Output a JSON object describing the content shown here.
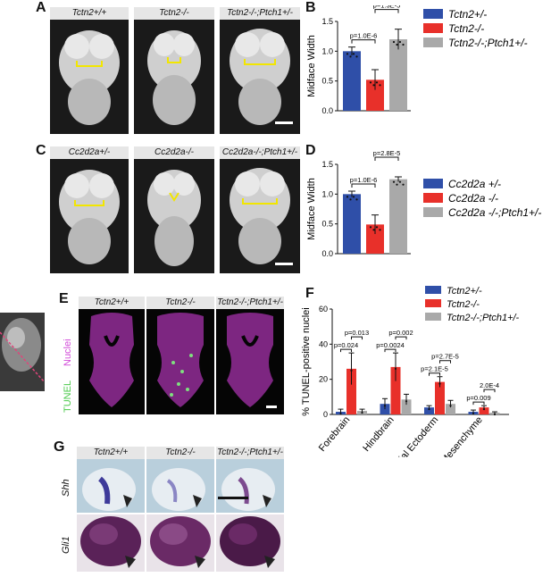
{
  "panel_labels": {
    "A": "A",
    "B": "B",
    "C": "C",
    "D": "D",
    "E": "E",
    "F": "F",
    "G": "G"
  },
  "panel_a": {
    "headers": [
      "Tctn2+/+",
      "Tctn2-/-",
      "Tctn2-/-;Ptch1+/-"
    ]
  },
  "panel_c": {
    "headers": [
      "Cc2d2a+/-",
      "Cc2d2a-/-",
      "Cc2d2a-/-;Ptch1+/-"
    ]
  },
  "panel_e": {
    "headers": [
      "Tctn2+/+",
      "Tctn2-/-",
      "Tctn2-/-;Ptch1+/-"
    ],
    "stain_labels": {
      "nuclei": "Nuclei",
      "tunel": "TUNEL"
    }
  },
  "panel_g": {
    "headers": [
      "Tctn2+/+",
      "Tctn2-/-",
      "Tctn2-/-;Ptch1+/-"
    ],
    "row_labels": [
      "Shh",
      "Gli1"
    ]
  },
  "colors": {
    "blue": "#2f4fa8",
    "red": "#e8302a",
    "gray": "#a9a9a9",
    "yellow": "#f2e600"
  },
  "chart_data": [
    {
      "type": "bar",
      "panel": "B",
      "ylabel": "Midface Width",
      "ylim": [
        0,
        1.5
      ],
      "yticks": [
        "0.0",
        "0.5",
        "1.0",
        "1.5"
      ],
      "categories": [
        "Tctn2+/-",
        "Tctn2-/-",
        "Tctn2-/-;Ptch1+/-"
      ],
      "values": [
        1.0,
        0.52,
        1.2
      ],
      "errors": [
        0.07,
        0.17,
        0.17
      ],
      "legend": [
        "Tctn2+/-",
        "Tctn2-/-",
        "Tctn2-/-;Ptch1+/-"
      ],
      "legend_position": "right",
      "pvalues": [
        {
          "text": "p=1.0E-6",
          "from": 0,
          "to": 1
        },
        {
          "text": "p=1.3E-5",
          "from": 1,
          "to": 2
        }
      ]
    },
    {
      "type": "bar",
      "panel": "D",
      "ylabel": "Midface Width",
      "ylim": [
        0,
        1.5
      ],
      "yticks": [
        "0.0",
        "0.5",
        "1.0",
        "1.5"
      ],
      "categories": [
        "Cc2d2a +/-",
        "Cc2d2a -/-",
        "Cc2d2a -/-;Ptch1+/-"
      ],
      "values": [
        1.0,
        0.49,
        1.25
      ],
      "errors": [
        0.05,
        0.16,
        0.04
      ],
      "legend": [
        "Cc2d2a +/-",
        "Cc2d2a -/-",
        "Cc2d2a -/-;Ptch1+/-"
      ],
      "legend_position": "right",
      "pvalues": [
        {
          "text": "p=1.0E-6",
          "from": 0,
          "to": 1
        },
        {
          "text": "p=2.8E-5",
          "from": 1,
          "to": 2
        }
      ]
    },
    {
      "type": "bar",
      "panel": "F",
      "ylabel": "% TUNEL-positive nuclei",
      "ylim": [
        0,
        60
      ],
      "yticks": [
        "0",
        "20",
        "40",
        "60"
      ],
      "categories": [
        "Forebrain",
        "Hindbrain",
        "Facial Ectoderm",
        "Mesenchyme"
      ],
      "series": [
        {
          "name": "Tctn2+/-",
          "values": [
            1.5,
            6,
            4,
            1.5
          ],
          "errors": [
            1.5,
            3,
            1,
            1
          ]
        },
        {
          "name": "Tctn2-/-",
          "values": [
            26,
            27,
            18.5,
            4
          ],
          "errors": [
            9,
            8,
            3,
            1
          ]
        },
        {
          "name": "Tctn2-/-;Ptch1+/-",
          "values": [
            2,
            8.5,
            6,
            1
          ],
          "errors": [
            1,
            3,
            2,
            0.5
          ]
        }
      ],
      "legend_position": "top-right",
      "pvalues": [
        {
          "text": "p=0.024",
          "group": 0,
          "from": 0,
          "to": 1
        },
        {
          "text": "p=0.013",
          "group": 0,
          "from": 1,
          "to": 2
        },
        {
          "text": "p=0.0024",
          "group": 1,
          "from": 0,
          "to": 1
        },
        {
          "text": "p=0.002",
          "group": 1,
          "from": 1,
          "to": 2
        },
        {
          "text": "p=2.1E-5",
          "group": 2,
          "from": 0,
          "to": 1
        },
        {
          "text": "p=2.7E-5",
          "group": 2,
          "from": 1,
          "to": 2
        },
        {
          "text": "p=0.009",
          "group": 3,
          "from": 0,
          "to": 1
        },
        {
          "text": "2.0E-4",
          "group": 3,
          "from": 1,
          "to": 2
        }
      ]
    }
  ]
}
